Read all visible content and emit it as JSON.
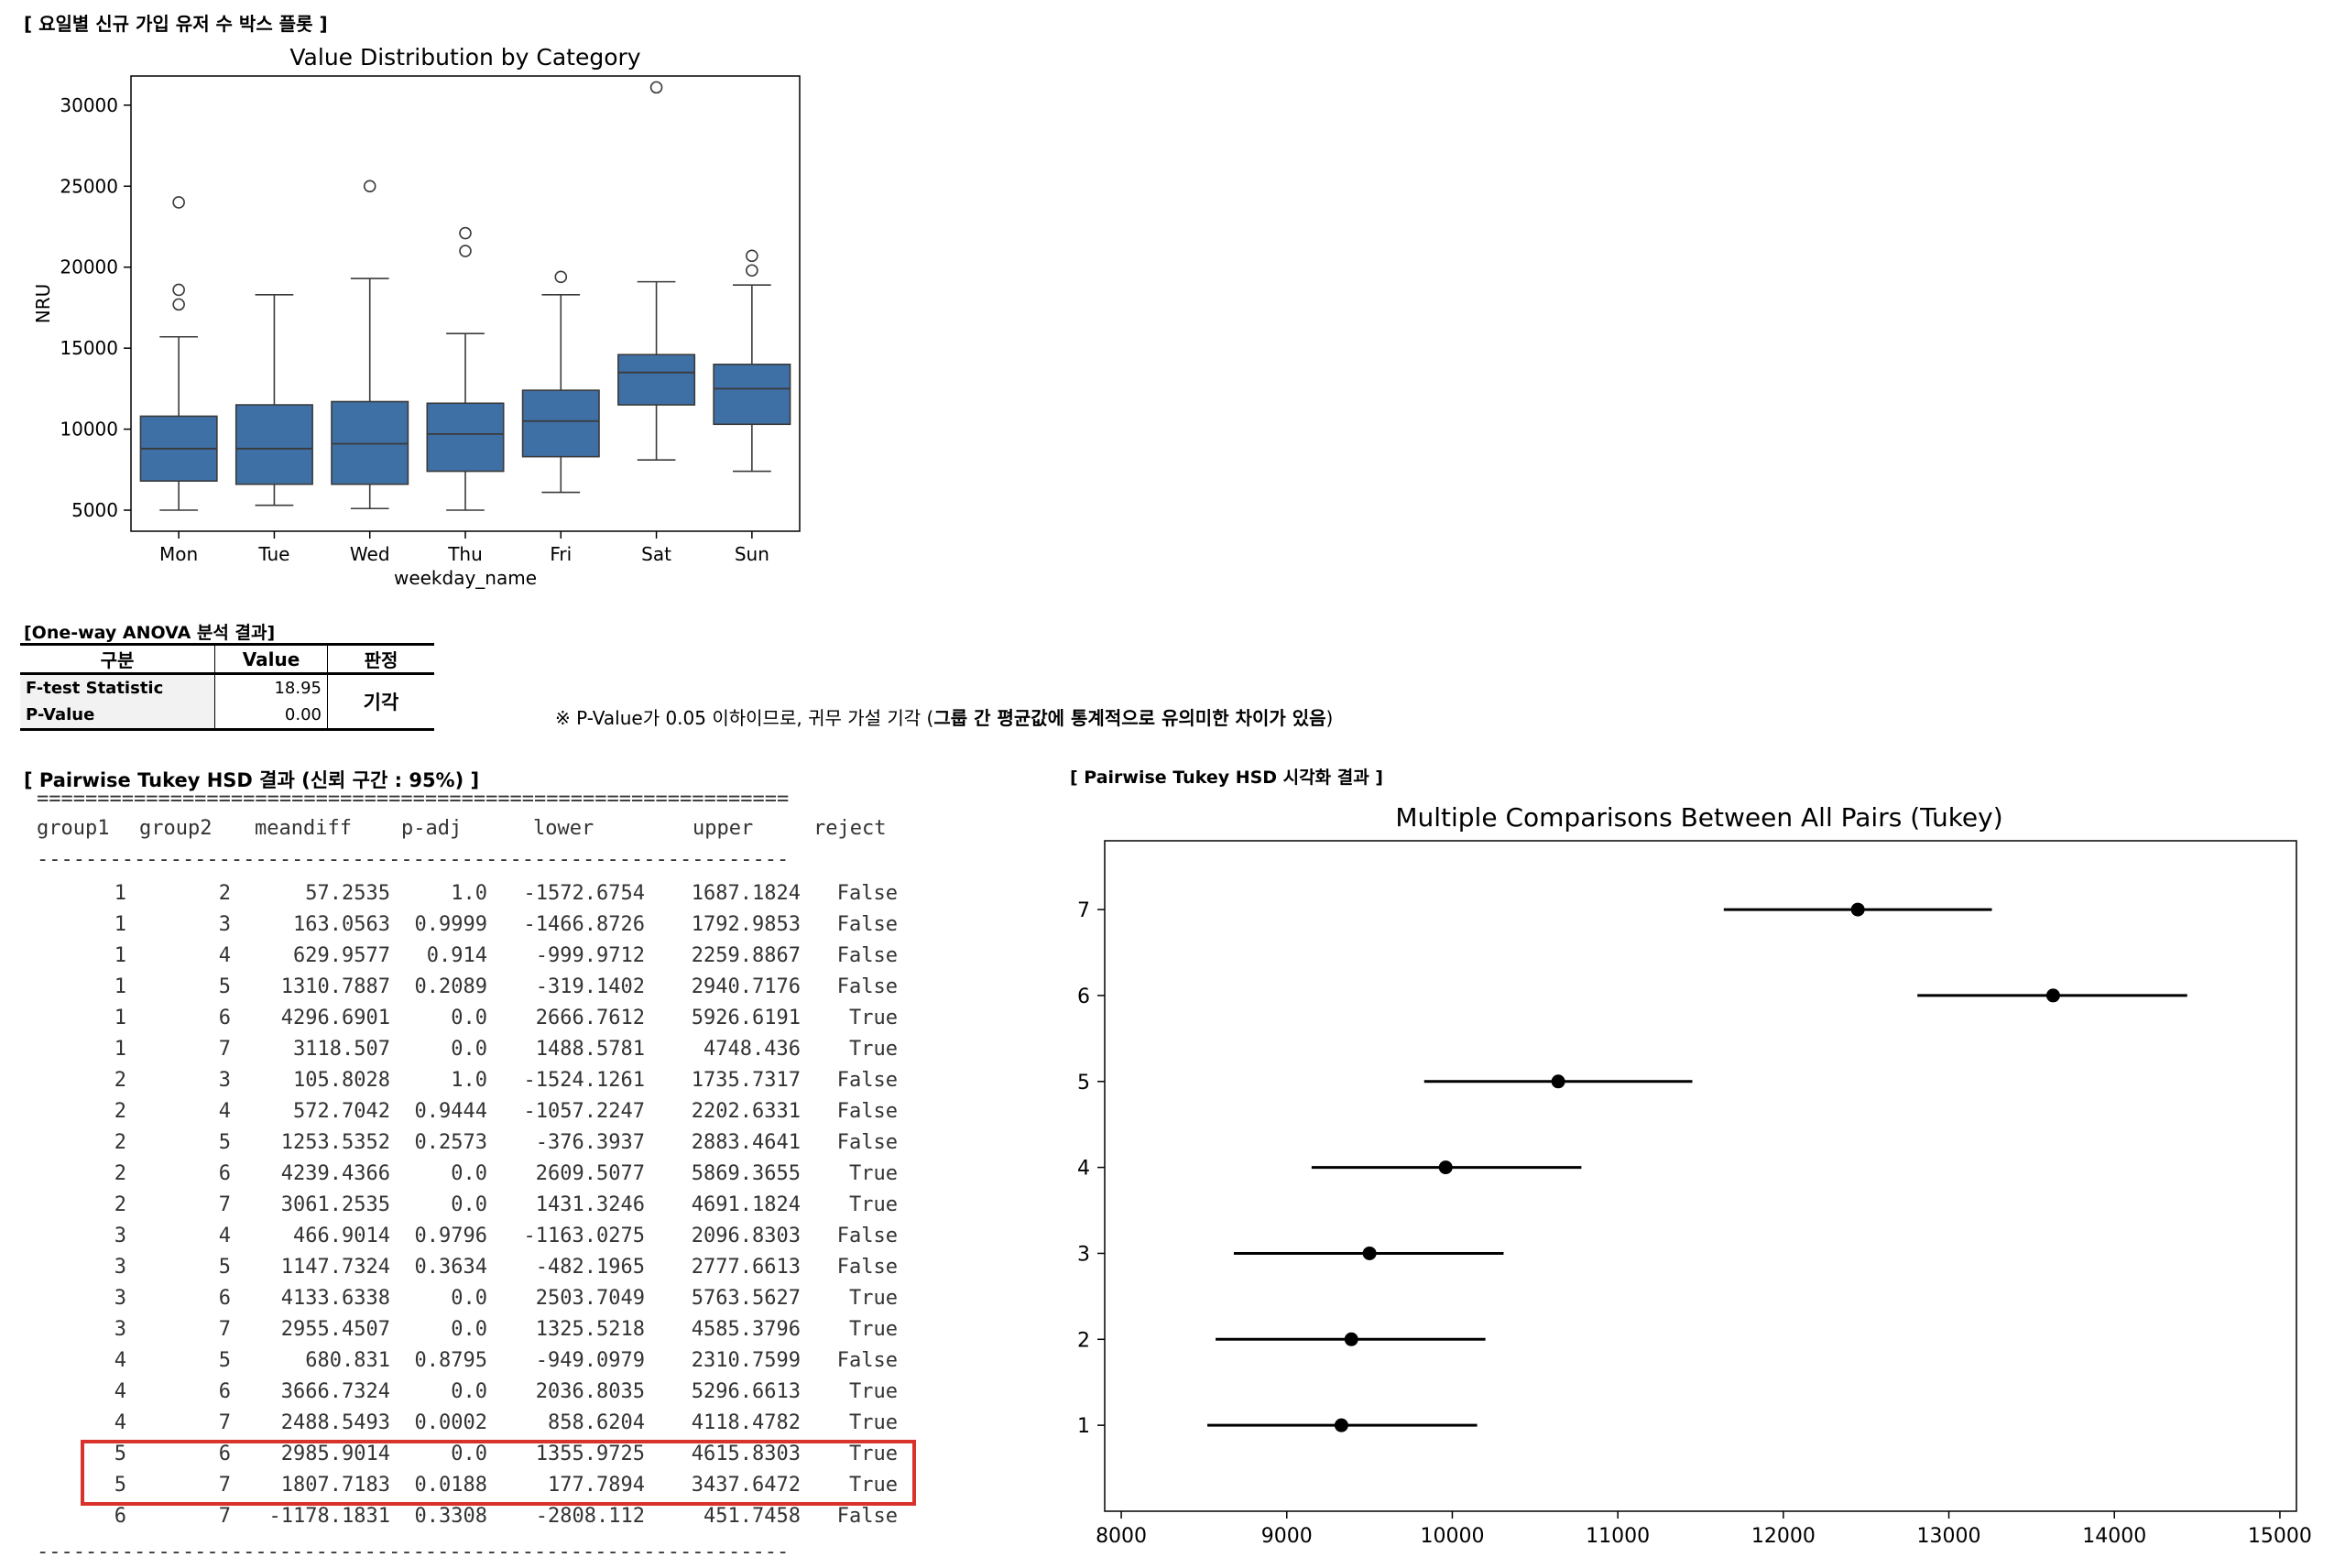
{
  "boxplot": {
    "section_title": "[ 요일별 신규 가입 유저 수 박스 플롯 ]",
    "colors": {
      "box_fill": "#3e6fa5",
      "line": "#3a3a3a"
    }
  },
  "anova": {
    "section_title": "[One-way ANOVA 분석 결과]",
    "headers": [
      "구분",
      "Value",
      "판정"
    ],
    "rows": [
      {
        "label": "F-test Statistic",
        "value": "18.95"
      },
      {
        "label": "P-Value",
        "value": "0.00"
      }
    ],
    "verdict": "기각",
    "note_prefix": "※ P-Value가 0.05 이하이므로, 귀무 가설 기각 (",
    "note_bold": "그룹 간 평균값에 통계적으로 유의미한 차이가 있음",
    "note_suffix": ")"
  },
  "tukey_table": {
    "section_title": "[ Pairwise Tukey HSD 결과 (신뢰 구간 : 95%) ]",
    "rule_top": "==============================================================",
    "rule_mid": "--------------------------------------------------------------",
    "headers": [
      "group1",
      "group2",
      "meandiff",
      "p-adj",
      "lower",
      "upper",
      "reject"
    ],
    "rows": [
      [
        "1",
        "2",
        "57.2535",
        "1.0",
        "-1572.6754",
        "1687.1824",
        "False"
      ],
      [
        "1",
        "3",
        "163.0563",
        "0.9999",
        "-1466.8726",
        "1792.9853",
        "False"
      ],
      [
        "1",
        "4",
        "629.9577",
        "0.914",
        "-999.9712",
        "2259.8867",
        "False"
      ],
      [
        "1",
        "5",
        "1310.7887",
        "0.2089",
        "-319.1402",
        "2940.7176",
        "False"
      ],
      [
        "1",
        "6",
        "4296.6901",
        "0.0",
        "2666.7612",
        "5926.6191",
        "True"
      ],
      [
        "1",
        "7",
        "3118.507",
        "0.0",
        "1488.5781",
        "4748.436",
        "True"
      ],
      [
        "2",
        "3",
        "105.8028",
        "1.0",
        "-1524.1261",
        "1735.7317",
        "False"
      ],
      [
        "2",
        "4",
        "572.7042",
        "0.9444",
        "-1057.2247",
        "2202.6331",
        "False"
      ],
      [
        "2",
        "5",
        "1253.5352",
        "0.2573",
        "-376.3937",
        "2883.4641",
        "False"
      ],
      [
        "2",
        "6",
        "4239.4366",
        "0.0",
        "2609.5077",
        "5869.3655",
        "True"
      ],
      [
        "2",
        "7",
        "3061.2535",
        "0.0",
        "1431.3246",
        "4691.1824",
        "True"
      ],
      [
        "3",
        "4",
        "466.9014",
        "0.9796",
        "-1163.0275",
        "2096.8303",
        "False"
      ],
      [
        "3",
        "5",
        "1147.7324",
        "0.3634",
        "-482.1965",
        "2777.6613",
        "False"
      ],
      [
        "3",
        "6",
        "4133.6338",
        "0.0",
        "2503.7049",
        "5763.5627",
        "True"
      ],
      [
        "3",
        "7",
        "2955.4507",
        "0.0",
        "1325.5218",
        "4585.3796",
        "True"
      ],
      [
        "4",
        "5",
        "680.831",
        "0.8795",
        "-949.0979",
        "2310.7599",
        "False"
      ],
      [
        "4",
        "6",
        "3666.7324",
        "0.0",
        "2036.8035",
        "5296.6613",
        "True"
      ],
      [
        "4",
        "7",
        "2488.5493",
        "0.0002",
        "858.6204",
        "4118.4782",
        "True"
      ],
      [
        "5",
        "6",
        "2985.9014",
        "0.0",
        "1355.9725",
        "4615.8303",
        "True"
      ],
      [
        "5",
        "7",
        "1807.7183",
        "0.0188",
        "177.7894",
        "3437.6472",
        "True"
      ],
      [
        "6",
        "7",
        "-1178.1831",
        "0.3308",
        "-2808.112",
        "451.7458",
        "False"
      ]
    ],
    "highlight_color": "#d9322b"
  },
  "tukey_plot": {
    "section_title": "[ Pairwise Tukey HSD 시각화 결과 ]"
  },
  "chart_data": [
    {
      "type": "box",
      "title": "Value Distribution by Category",
      "xlabel": "weekday_name",
      "ylabel": "NRU",
      "categories": [
        "Mon",
        "Tue",
        "Wed",
        "Thu",
        "Fri",
        "Sat",
        "Sun"
      ],
      "ylim": [
        3700,
        31800
      ],
      "yticks": [
        5000,
        10000,
        15000,
        20000,
        25000,
        30000
      ],
      "boxes": [
        {
          "whisker_low": 5000,
          "q1": 6800,
          "median": 8800,
          "q3": 10800,
          "whisker_high": 15700,
          "outliers": [
            17700,
            18600,
            24000
          ]
        },
        {
          "whisker_low": 5300,
          "q1": 6600,
          "median": 8800,
          "q3": 11500,
          "whisker_high": 18300,
          "outliers": []
        },
        {
          "whisker_low": 5100,
          "q1": 6600,
          "median": 9100,
          "q3": 11700,
          "whisker_high": 19300,
          "outliers": [
            25000
          ]
        },
        {
          "whisker_low": 5000,
          "q1": 7400,
          "median": 9700,
          "q3": 11600,
          "whisker_high": 15900,
          "outliers": [
            21000,
            22100
          ]
        },
        {
          "whisker_low": 6100,
          "q1": 8300,
          "median": 10500,
          "q3": 12400,
          "whisker_high": 18300,
          "outliers": [
            19400
          ]
        },
        {
          "whisker_low": 8100,
          "q1": 11500,
          "median": 13500,
          "q3": 14600,
          "whisker_high": 19100,
          "outliers": [
            31100
          ]
        },
        {
          "whisker_low": 7400,
          "q1": 10300,
          "median": 12500,
          "q3": 14000,
          "whisker_high": 18900,
          "outliers": [
            19800,
            20700
          ]
        }
      ],
      "grid": false
    },
    {
      "type": "errorbar",
      "title": "Multiple Comparisons Between All Pairs (Tukey)",
      "xlim": [
        7900,
        15100
      ],
      "xticks": [
        8000,
        9000,
        10000,
        11000,
        12000,
        13000,
        14000,
        15000
      ],
      "ylim": [
        0,
        7.8
      ],
      "groups": [
        {
          "label": "1",
          "mean": 9330,
          "lower": 8520,
          "upper": 10150
        },
        {
          "label": "2",
          "mean": 9390,
          "lower": 8570,
          "upper": 10200
        },
        {
          "label": "3",
          "mean": 9500,
          "lower": 8680,
          "upper": 10310
        },
        {
          "label": "4",
          "mean": 9960,
          "lower": 9150,
          "upper": 10780
        },
        {
          "label": "5",
          "mean": 10640,
          "lower": 9830,
          "upper": 11450
        },
        {
          "label": "6",
          "mean": 13630,
          "lower": 12810,
          "upper": 14440
        },
        {
          "label": "7",
          "mean": 12450,
          "lower": 11640,
          "upper": 13260
        }
      ],
      "grid": false
    }
  ]
}
